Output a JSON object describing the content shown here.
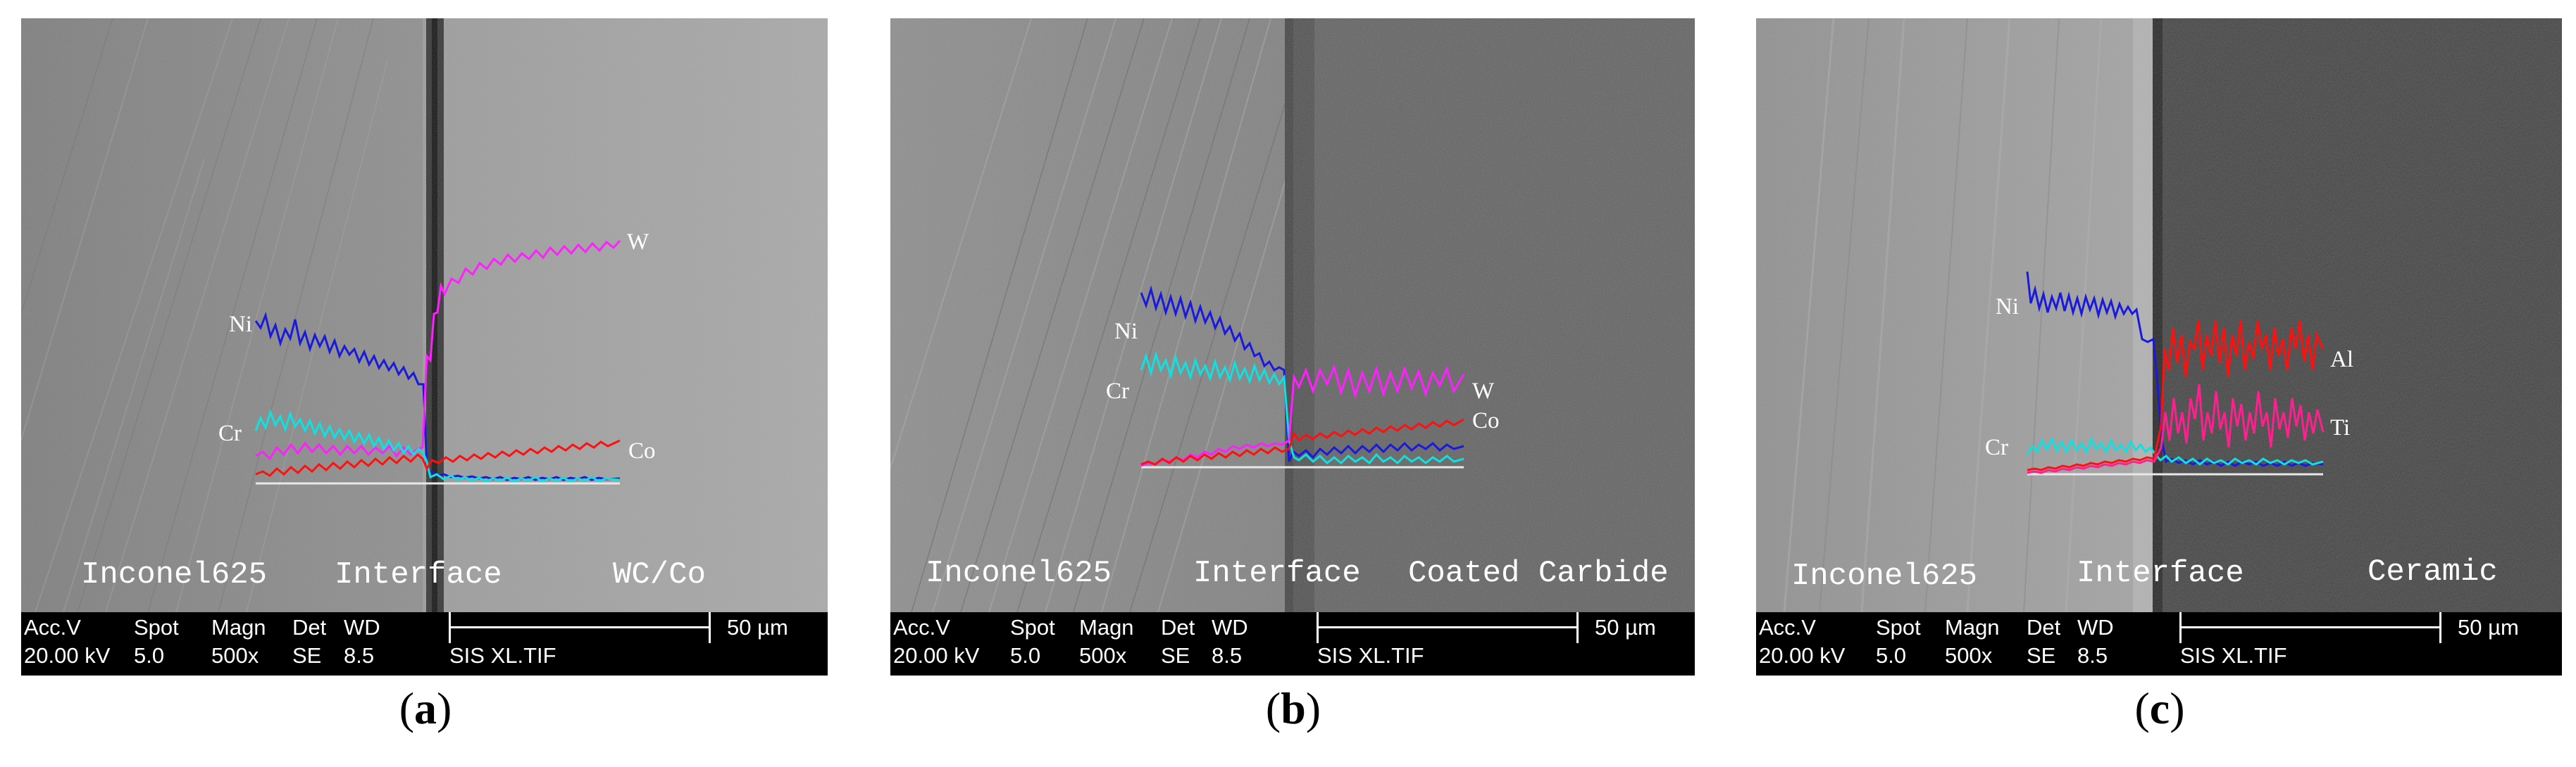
{
  "panels": [
    {
      "letter": "a",
      "regions": [
        "Inconel625",
        "Interface",
        "WC/Co"
      ],
      "elements": [
        "Ni",
        "W",
        "Cr",
        "Co"
      ],
      "databar": {
        "row1": [
          "Acc.V",
          "Spot",
          "Magn",
          "Det",
          "WD"
        ],
        "row2": [
          "20.00 kV",
          "5.0",
          "500x",
          "SE",
          "8.5"
        ],
        "scale": "50 µm",
        "file": "SIS XL.TIF"
      }
    },
    {
      "letter": "b",
      "regions": [
        "Inconel625",
        "Interface",
        "Coated Carbide"
      ],
      "elements": [
        "Ni",
        "Cr",
        "W",
        "Co"
      ],
      "databar": {
        "row1": [
          "Acc.V",
          "Spot",
          "Magn",
          "Det",
          "WD"
        ],
        "row2": [
          "20.00 kV",
          "5.0",
          "500x",
          "SE",
          "8.5"
        ],
        "scale": "50 µm",
        "file": "SIS XL.TIF"
      }
    },
    {
      "letter": "c",
      "regions": [
        "Inconel625",
        "Interface",
        "Ceramic"
      ],
      "elements": [
        "Ni",
        "Al",
        "Cr",
        "Ti"
      ],
      "databar": {
        "row1": [
          "Acc.V",
          "Spot",
          "Magn",
          "Det",
          "WD"
        ],
        "row2": [
          "20.00 kV",
          "5.0",
          "500x",
          "SE",
          "8.5"
        ],
        "scale": "50 µm",
        "file": "SIS XL.TIF"
      }
    }
  ],
  "colors": {
    "Ni": "#1a1adc",
    "W": "#ff20ff",
    "Cr": "#10e0e0",
    "Co": "#ff1010",
    "Al": "#ff1010",
    "Ti": "#ff2090",
    "baseline": "#e8e8e8"
  }
}
